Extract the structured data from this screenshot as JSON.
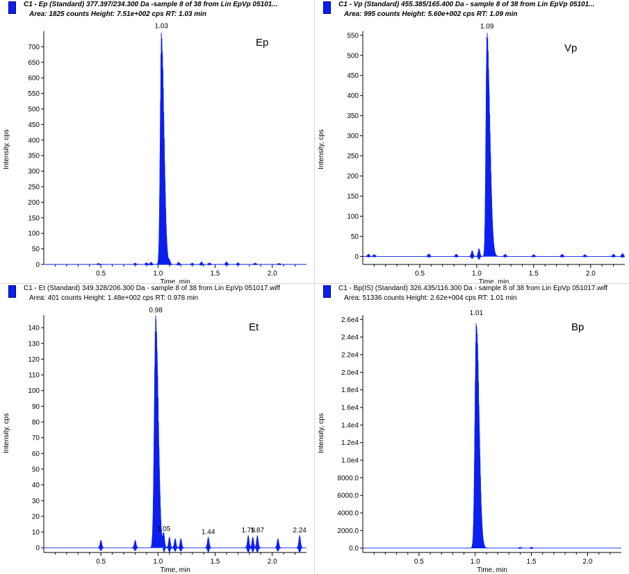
{
  "panels": [
    {
      "header_line1": "C1 - Ep (Standard) 377.397/234.300 Da -sample 8 of 38 from Lin EpVp 05101...",
      "header_line2": "Area: 1825 counts  Height: 7.51e+002 cps  RT: 1.03 min",
      "header_style": "italic-bold"
    },
    {
      "header_line1": "C1 - Vp (Standard) 455.385/165.400 Da - sample 8 of 38 from Lin EpVp 05101...",
      "header_line2": "Area: 995 counts  Height: 5.60e+002 cps  RT: 1.09 min",
      "header_style": "italic-bold"
    },
    {
      "header_line1": "C1 - Et (Standard) 349.328/206.300 Da - sample 8 of 38 from Lin EpVp 051017.wiff",
      "header_line2": "Area: 401 counts  Height: 1.48e+002 cps  RT: 0.978 min",
      "header_style": "normal"
    },
    {
      "header_line1": "C1 - Bp(IS) (Standard) 326.435/116.300 Da - sample 8 of 38 from Lin EpVp 051017.wiff",
      "header_line2": "Area: 51336 counts  Height: 2.62e+004 cps  RT: 1.01 min",
      "header_style": "normal"
    }
  ],
  "chart_data": [
    {
      "type": "area",
      "title": "Ep",
      "xlabel": "Time, min",
      "ylabel": "Intensity, cps",
      "xlim": [
        0,
        2.3
      ],
      "ylim": [
        0,
        750
      ],
      "x_ticks": [
        0.5,
        1.0,
        1.5,
        2.0
      ],
      "x_tick_labels": [
        "0.5",
        "1.0",
        "1.5",
        "2.0"
      ],
      "y_ticks": [
        0,
        50,
        100,
        150,
        200,
        250,
        300,
        350,
        400,
        450,
        500,
        550,
        600,
        650,
        700
      ],
      "y_tick_labels": [
        "0",
        "50",
        "100",
        "150",
        "200",
        "250",
        "300",
        "350",
        "400",
        "450",
        "500",
        "550",
        "600",
        "650",
        "700"
      ],
      "peak": {
        "rt": 1.03,
        "height": 751,
        "sigma_left": 0.01,
        "sigma_right": 0.022
      },
      "peak_labels": [
        {
          "x": 1.03,
          "text": "1.03"
        }
      ],
      "noise": [
        {
          "x": 0.48,
          "h": 4
        },
        {
          "x": 0.8,
          "h": 5
        },
        {
          "x": 0.9,
          "h": 6
        },
        {
          "x": 0.94,
          "h": 8
        },
        {
          "x": 1.1,
          "h": 12
        },
        {
          "x": 1.18,
          "h": 8
        },
        {
          "x": 1.3,
          "h": 5
        },
        {
          "x": 1.38,
          "h": 9
        },
        {
          "x": 1.45,
          "h": 6
        },
        {
          "x": 1.6,
          "h": 9
        },
        {
          "x": 1.7,
          "h": 6
        },
        {
          "x": 1.85,
          "h": 5
        },
        {
          "x": 2.06,
          "h": 4
        }
      ],
      "color": "#0a1ff0"
    },
    {
      "type": "area",
      "title": "Vp",
      "xlabel": "Time, min",
      "ylabel": "Intensity, cps",
      "xlim": [
        0,
        2.3
      ],
      "ylim": [
        -20,
        560
      ],
      "x_ticks": [
        0.5,
        1.0,
        1.5,
        2.0
      ],
      "x_tick_labels": [
        "0.5",
        "1.0",
        "1.5",
        "2.0"
      ],
      "y_ticks": [
        0,
        50,
        100,
        150,
        200,
        250,
        300,
        350,
        400,
        450,
        500,
        550
      ],
      "y_tick_labels": [
        "0",
        "50",
        "100",
        "150",
        "200",
        "250",
        "300",
        "350",
        "400",
        "450",
        "500",
        "550"
      ],
      "peak": {
        "rt": 1.09,
        "height": 560,
        "sigma_left": 0.009,
        "sigma_right": 0.025
      },
      "peak_labels": [
        {
          "x": 1.09,
          "text": "1.09"
        }
      ],
      "noise": [
        {
          "x": 0.05,
          "h": 6
        },
        {
          "x": 0.1,
          "h": 5
        },
        {
          "x": 0.58,
          "h": 7
        },
        {
          "x": 0.82,
          "h": 6
        },
        {
          "x": 0.96,
          "h": 15
        },
        {
          "x": 1.02,
          "h": 20
        },
        {
          "x": 1.25,
          "h": 6
        },
        {
          "x": 1.5,
          "h": 5
        },
        {
          "x": 1.75,
          "h": 6
        },
        {
          "x": 1.95,
          "h": 5
        },
        {
          "x": 2.2,
          "h": 6
        },
        {
          "x": 2.28,
          "h": 8
        }
      ],
      "color": "#0a1ff0"
    },
    {
      "type": "area",
      "title": "Et",
      "xlabel": "Time, min",
      "ylabel": "Intensity, cps",
      "xlim": [
        0,
        2.3
      ],
      "ylim": [
        -3,
        148
      ],
      "x_ticks": [
        0.5,
        1.0,
        1.5,
        2.0
      ],
      "x_tick_labels": [
        "0.5",
        "1.0",
        "1.5",
        "2.0"
      ],
      "y_ticks": [
        0,
        10,
        20,
        30,
        40,
        50,
        60,
        70,
        80,
        90,
        100,
        110,
        120,
        130,
        140
      ],
      "y_tick_labels": [
        "0",
        "10",
        "20",
        "30",
        "40",
        "50",
        "60",
        "70",
        "80",
        "90",
        "100",
        "110",
        "120",
        "130",
        "140"
      ],
      "peak": {
        "rt": 0.98,
        "height": 148,
        "sigma_left": 0.012,
        "sigma_right": 0.022
      },
      "peak_labels": [
        {
          "x": 0.98,
          "text": "0.98"
        },
        {
          "x": 1.05,
          "text": "1.05"
        },
        {
          "x": 1.44,
          "text": "1.44"
        },
        {
          "x": 1.79,
          "text": "1.79"
        },
        {
          "x": 1.87,
          "text": "1.87"
        },
        {
          "x": 2.24,
          "text": "2.24"
        }
      ],
      "noise": [
        {
          "x": 0.5,
          "h": 5
        },
        {
          "x": 0.8,
          "h": 5
        },
        {
          "x": 1.05,
          "h": 9
        },
        {
          "x": 1.1,
          "h": 7
        },
        {
          "x": 1.15,
          "h": 6
        },
        {
          "x": 1.2,
          "h": 6
        },
        {
          "x": 1.44,
          "h": 7
        },
        {
          "x": 1.79,
          "h": 8
        },
        {
          "x": 1.83,
          "h": 7
        },
        {
          "x": 1.87,
          "h": 8
        },
        {
          "x": 2.05,
          "h": 6
        },
        {
          "x": 2.24,
          "h": 8
        }
      ],
      "color": "#0a1ff0"
    },
    {
      "type": "area",
      "title": "Bp",
      "xlabel": "Time, min",
      "ylabel": "Intensity, cps",
      "xlim": [
        0,
        2.3
      ],
      "ylim": [
        -500,
        26500
      ],
      "x_ticks": [
        0.5,
        1.0,
        1.5,
        2.0
      ],
      "x_tick_labels": [
        "0.5",
        "1.0",
        "1.5",
        "2.0"
      ],
      "y_ticks": [
        0,
        2000,
        4000,
        6000,
        8000,
        10000,
        12000,
        14000,
        16000,
        18000,
        20000,
        22000,
        24000,
        26000
      ],
      "y_tick_labels": [
        "0.0",
        "2000.0",
        "4000.0",
        "6000.0",
        "8000.0",
        "1.0e4",
        "1.2e4",
        "1.4e4",
        "1.6e4",
        "1.8e4",
        "2.0e4",
        "2.2e4",
        "2.4e4",
        "2.6e4"
      ],
      "peak": {
        "rt": 1.01,
        "height": 26200,
        "sigma_left": 0.012,
        "sigma_right": 0.024
      },
      "peak_labels": [
        {
          "x": 1.01,
          "text": "1.01"
        }
      ],
      "noise": [
        {
          "x": 1.4,
          "h": 80
        },
        {
          "x": 1.5,
          "h": 60
        }
      ],
      "color": "#0a1ff0"
    }
  ]
}
